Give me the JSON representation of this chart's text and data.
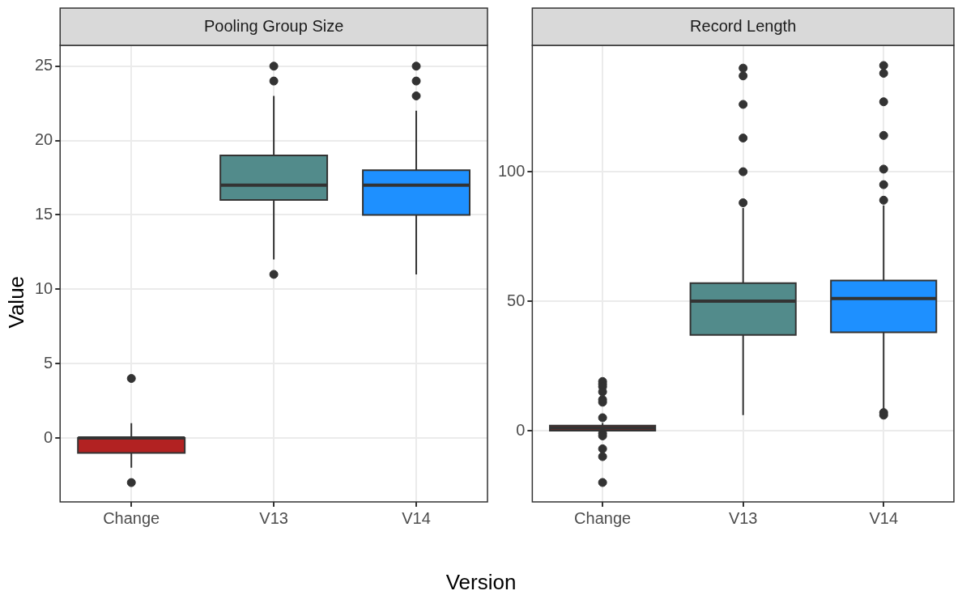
{
  "chart_data": [
    {
      "type": "box",
      "title": "Pooling Group Size",
      "xlabel": "Version",
      "ylabel": "Value",
      "categories": [
        "Change",
        "V13",
        "V14"
      ],
      "colors": [
        "#b22222",
        "#528b8b",
        "#1e90ff"
      ],
      "boxes": [
        {
          "low": -2,
          "q1": -1,
          "median": 0,
          "q3": 0,
          "high": 1,
          "outliers": [
            4,
            -3
          ]
        },
        {
          "low": 12,
          "q1": 16,
          "median": 17,
          "q3": 19,
          "high": 23,
          "outliers": [
            25,
            24,
            11
          ]
        },
        {
          "low": 11,
          "q1": 15,
          "median": 17,
          "q3": 18,
          "high": 22,
          "outliers": [
            25,
            24,
            23
          ]
        }
      ],
      "ylim": [
        -4.3,
        26.4
      ],
      "yticks": [
        0,
        5,
        10,
        15,
        20,
        25
      ],
      "grid": true,
      "legend": false
    },
    {
      "type": "box",
      "title": "Record Length",
      "categories": [
        "Change",
        "V13",
        "V14"
      ],
      "colors": [
        "#b22222",
        "#528b8b",
        "#1e90ff"
      ],
      "boxes": [
        {
          "low": 0,
          "q1": 0,
          "median": 1,
          "q3": 2,
          "high": 3,
          "outliers": [
            19,
            18,
            17,
            15,
            12,
            11,
            5,
            -1,
            -2,
            -7,
            -10,
            -20
          ]
        },
        {
          "low": 6,
          "q1": 37,
          "median": 50,
          "q3": 57,
          "high": 86,
          "outliers": [
            140,
            137,
            126,
            113,
            100,
            88
          ]
        },
        {
          "low": 8,
          "q1": 38,
          "median": 51,
          "q3": 58,
          "high": 87,
          "outliers": [
            141,
            138,
            127,
            114,
            101,
            95,
            89,
            7,
            6
          ]
        }
      ],
      "ylim": [
        -27.5,
        148.8
      ],
      "yticks": [
        0,
        50,
        100
      ],
      "grid": true,
      "legend": false
    }
  ]
}
